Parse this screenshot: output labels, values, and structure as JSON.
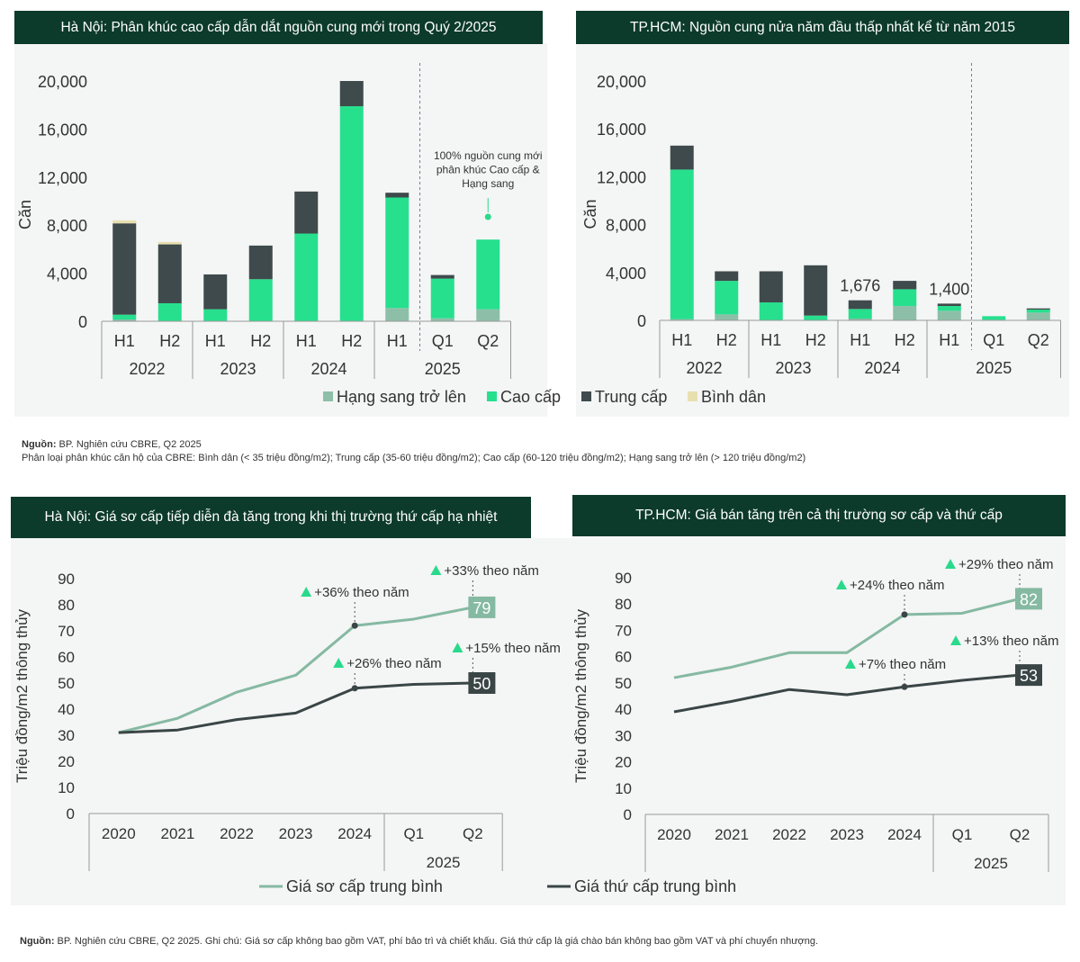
{
  "headers": {
    "hn_supply": "Hà Nội: Phân khúc cao cấp dẫn dắt nguồn cung mới trong Quý 2/2025",
    "hcm_supply": "TP.HCM: Nguồn cung nửa năm đầu thấp nhất kể từ năm 2015",
    "hn_price": "Hà Nội: Giá sơ cấp tiếp diễn đà tăng trong khi thị trường thứ cấp hạ nhiệt",
    "hcm_price": "TP.HCM: Giá bán tăng trên cả thị trường sơ cấp và thứ cấp"
  },
  "colors": {
    "header_bg": "#0c3a2b",
    "panel_bg": "#f4f5f5",
    "hang_sang": "#8dbfa8",
    "cao_cap": "#26e08e",
    "trung_cap": "#3e4a4b",
    "binh_dan": "#e8dfb0",
    "primary_line": "#85b9a2",
    "secondary_line": "#3a4546",
    "triangle": "#2ad98b"
  },
  "notes": {
    "source1_label": "Nguồn:",
    "source1_text": " BP. Nghiên cứu CBRE, Q2 2025",
    "source1_line2": "Phân loại phân khúc căn hộ của CBRE: Bình dân (< 35 triệu đồng/m2); Trung cấp (35-60 triệu đồng/m2); Cao cấp (60-120 triệu đồng/m2); Hạng sang trở lên (> 120 triệu đồng/m2)",
    "source2_label": "Nguồn:",
    "source2_text": " BP. Nghiên cứu CBRE, Q2 2025. Ghi chú: Giá sơ cấp không bao gồm VAT, phí bảo trì và chiết khấu. Giá thứ cấp là giá chào bán không bao gồm VAT và phí chuyển nhượng."
  },
  "supply_legend": [
    "Hạng sang trở lên",
    "Cao cấp",
    "Trung cấp",
    "Bình dân"
  ],
  "price_legend": [
    "Giá sơ cấp trung bình",
    "Giá thứ cấp trung bình"
  ],
  "chart_data": [
    {
      "id": "hn_supply",
      "type": "bar",
      "stacked": true,
      "ylabel": "Căn",
      "ylim": [
        0,
        20000
      ],
      "yticks": [
        0,
        4000,
        8000,
        12000,
        16000,
        20000
      ],
      "ytick_labels": [
        "0",
        "4,000",
        "8,000",
        "12,000",
        "16,000",
        "20,000"
      ],
      "categories": [
        "H1",
        "H2",
        "H1",
        "H2",
        "H1",
        "H2",
        "H1",
        "Q1",
        "Q2"
      ],
      "year_groups": [
        {
          "label": "2022",
          "span": 2
        },
        {
          "label": "2023",
          "span": 2
        },
        {
          "label": "2024",
          "span": 2
        },
        {
          "label": "2025",
          "span": 3
        }
      ],
      "series": [
        {
          "name": "Hạng sang trở lên",
          "values": [
            150,
            0,
            0,
            0,
            0,
            0,
            1100,
            250,
            1000
          ]
        },
        {
          "name": "Cao cấp",
          "values": [
            400,
            1500,
            1000,
            3500,
            7300,
            17900,
            9200,
            3300,
            5800
          ]
        },
        {
          "name": "Trung cấp",
          "values": [
            7600,
            4900,
            2900,
            2800,
            3500,
            2100,
            400,
            300,
            0
          ]
        },
        {
          "name": "Bình dân",
          "values": [
            250,
            200,
            0,
            0,
            0,
            0,
            0,
            0,
            0
          ]
        }
      ],
      "divider_after_index": 6,
      "annotation": "100% nguồn cung mới phân khúc Cao cấp & Hạng sang",
      "annotation_lines": [
        "100% nguồn cung mới",
        "phân khúc Cao cấp &",
        "Hạng sang"
      ]
    },
    {
      "id": "hcm_supply",
      "type": "bar",
      "stacked": true,
      "ylabel": "Căn",
      "ylim": [
        0,
        20000
      ],
      "yticks": [
        0,
        4000,
        8000,
        12000,
        16000,
        20000
      ],
      "ytick_labels": [
        "0",
        "4,000",
        "8,000",
        "12,000",
        "16,000",
        "20,000"
      ],
      "categories": [
        "H1",
        "H2",
        "H1",
        "H2",
        "H1",
        "H2",
        "H1",
        "Q1",
        "Q2"
      ],
      "year_groups": [
        {
          "label": "2022",
          "span": 2
        },
        {
          "label": "2023",
          "span": 2
        },
        {
          "label": "2024",
          "span": 2
        },
        {
          "label": "2025",
          "span": 3
        }
      ],
      "series": [
        {
          "name": "Hạng sang trở lên",
          "values": [
            100,
            500,
            0,
            0,
            150,
            1200,
            800,
            50,
            650
          ]
        },
        {
          "name": "Cao cấp",
          "values": [
            12500,
            2800,
            1500,
            400,
            800,
            1400,
            400,
            300,
            250
          ]
        },
        {
          "name": "Trung cấp",
          "values": [
            2000,
            800,
            2600,
            4200,
            726,
            700,
            200,
            0,
            100
          ]
        },
        {
          "name": "Bình dân",
          "values": [
            0,
            0,
            0,
            0,
            0,
            0,
            0,
            0,
            0
          ]
        }
      ],
      "divider_after_index": 6,
      "total_labels": [
        {
          "index": 4,
          "text": "1,676"
        },
        {
          "index": 6,
          "text": "1,400"
        }
      ]
    },
    {
      "id": "hn_price",
      "type": "line",
      "ylabel": "Triệu đồng/m2 thông thủy",
      "ylim": [
        0,
        90
      ],
      "yticks": [
        0,
        10,
        20,
        30,
        40,
        50,
        60,
        70,
        80,
        90
      ],
      "x": [
        "2020",
        "2021",
        "2022",
        "2023",
        "2024",
        "Q1",
        "Q2"
      ],
      "x_group": "2025",
      "series": [
        {
          "name": "Giá sơ cấp trung bình",
          "values": [
            31,
            36.5,
            46.5,
            53,
            72,
            74.5,
            79
          ],
          "end_label": "79"
        },
        {
          "name": "Giá thứ cấp trung bình",
          "values": [
            31,
            32,
            36,
            38.5,
            48,
            49.5,
            50
          ],
          "end_label": "50"
        }
      ],
      "annotations": [
        {
          "series": 0,
          "index": 4,
          "text": "+36% theo năm",
          "place": "above"
        },
        {
          "series": 0,
          "index": 6,
          "text": "+33% theo năm",
          "place": "above"
        },
        {
          "series": 1,
          "index": 4,
          "text": "+26% theo năm",
          "place": "above"
        },
        {
          "series": 1,
          "index": 6,
          "text": "+15% theo năm",
          "place": "above"
        }
      ]
    },
    {
      "id": "hcm_price",
      "type": "line",
      "ylabel": "Triệu đồng/m2 thông thủy",
      "ylim": [
        0,
        90
      ],
      "yticks": [
        0,
        10,
        20,
        30,
        40,
        50,
        60,
        70,
        80,
        90
      ],
      "x": [
        "2020",
        "2021",
        "2022",
        "2023",
        "2024",
        "Q1",
        "Q2"
      ],
      "x_group": "2025",
      "series": [
        {
          "name": "Giá sơ cấp trung bình",
          "values": [
            52,
            56,
            61.5,
            61.5,
            76,
            76.5,
            82
          ],
          "end_label": "82"
        },
        {
          "name": "Giá thứ cấp trung bình",
          "values": [
            39,
            43,
            47.5,
            45.5,
            48.5,
            51,
            53
          ],
          "end_label": "53"
        }
      ],
      "annotations": [
        {
          "series": 0,
          "index": 4,
          "text": "+24% theo năm",
          "place": "above"
        },
        {
          "series": 0,
          "index": 6,
          "text": "+29% theo năm",
          "place": "above"
        },
        {
          "series": 1,
          "index": 4,
          "text": "+7% theo năm",
          "place": "above"
        },
        {
          "series": 1,
          "index": 6,
          "text": "+13% theo năm",
          "place": "above"
        }
      ]
    }
  ]
}
